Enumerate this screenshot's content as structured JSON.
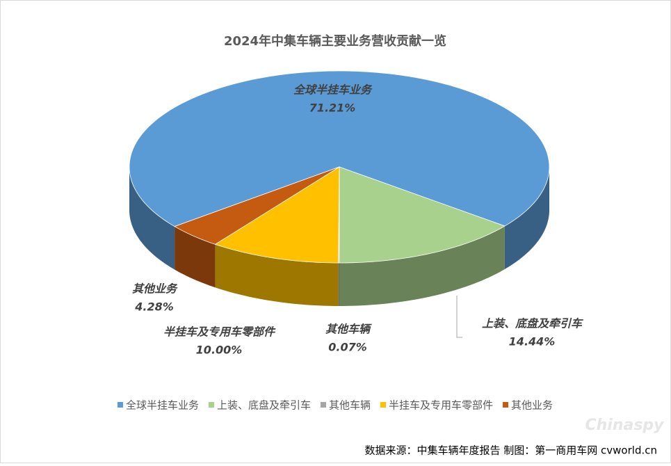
{
  "chart_data": {
    "type": "pie",
    "title": "2024年中集车辆主要业务营收贡献一览",
    "categories": [
      "全球半挂车业务",
      "上装、底盘及牵引车",
      "其他车辆",
      "半挂车及专用车零部件",
      "其他业务"
    ],
    "values": [
      71.21,
      14.44,
      0.07,
      10.0,
      4.28
    ],
    "value_labels": [
      "71.21%",
      "14.44%",
      "0.07%",
      "10.00%",
      "4.28%"
    ],
    "colors": [
      "#5b9bd5",
      "#a9d18e",
      "#a5a5a5",
      "#ffc000",
      "#c55a11"
    ],
    "legend": "bottom",
    "source": "数据来源：中集车辆年度报告  制图：第一商用车网 cvworld.cn",
    "watermark": "Chinaspy"
  }
}
